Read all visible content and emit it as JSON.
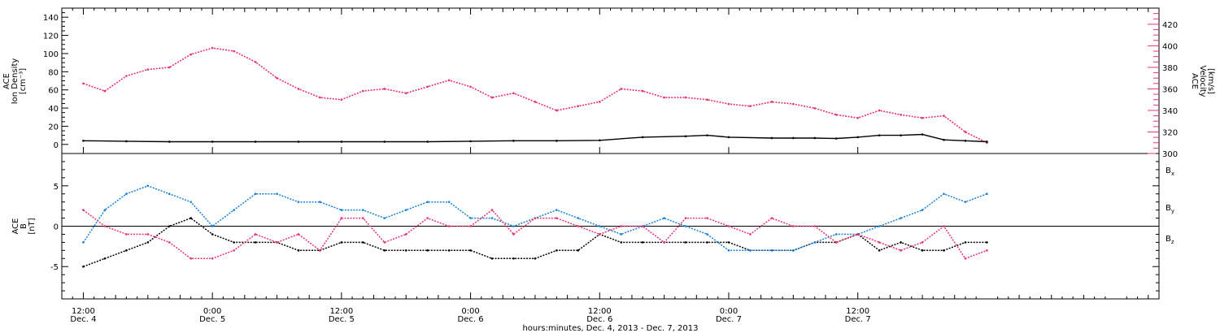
{
  "colors": {
    "black": "#000000",
    "pink": "#e8336b",
    "blue": "#1a7fd9"
  },
  "chart_data": [
    {
      "type": "scatter",
      "panel": "top",
      "ylabel_left_lines": [
        "ACE",
        "Ion Density",
        "[cm⁻³]"
      ],
      "ylabel_right_lines": [
        "ACE",
        "Velocity",
        "[km/s]"
      ],
      "ylim_left": [
        -10,
        150
      ],
      "ylim_right": [
        300,
        435
      ],
      "left_ticks": [
        "0",
        "20",
        "40",
        "60",
        "80",
        "100",
        "120",
        "140"
      ],
      "right_ticks": [
        "300",
        "320",
        "340",
        "360",
        "380",
        "400",
        "420"
      ],
      "series": [
        {
          "axis": "right",
          "color": "pink",
          "x": [
            0,
            2,
            4,
            6,
            8,
            10,
            12,
            14,
            16,
            18,
            20,
            22,
            24,
            26,
            28,
            30,
            32,
            34,
            36,
            38,
            40,
            42,
            44,
            46,
            48,
            50,
            52,
            54,
            56,
            58,
            60,
            62,
            64,
            66,
            68,
            70,
            72,
            74,
            76,
            78,
            80,
            82,
            84
          ],
          "y": [
            365,
            358,
            372,
            378,
            380,
            392,
            398,
            395,
            385,
            370,
            360,
            352,
            350,
            358,
            360,
            356,
            362,
            368,
            362,
            352,
            356,
            348,
            340,
            344,
            348,
            360,
            358,
            352,
            352,
            350,
            346,
            344,
            348,
            346,
            342,
            336,
            333,
            340,
            336,
            333,
            335,
            320,
            310
          ]
        },
        {
          "axis": "left",
          "color": "black",
          "x": [
            0,
            4,
            8,
            12,
            16,
            20,
            24,
            28,
            32,
            36,
            40,
            44,
            48,
            52,
            56,
            58,
            60,
            64,
            66,
            68,
            70,
            72,
            74,
            76,
            78,
            80,
            82,
            84
          ],
          "y": [
            4,
            3.5,
            3,
            3,
            3,
            3,
            3,
            3,
            3,
            3.5,
            4,
            4,
            4.5,
            8,
            9,
            10,
            8,
            7,
            7,
            7,
            6.5,
            8,
            10,
            10,
            11,
            5,
            4,
            3
          ]
        }
      ]
    },
    {
      "type": "scatter",
      "panel": "bottom",
      "ylabel_lines": [
        "ACE",
        "B",
        "[nT]"
      ],
      "ylim": [
        -9,
        9
      ],
      "ticks": [
        "-5",
        "0",
        "5"
      ],
      "legend": [
        "Bx",
        "By",
        "Bz"
      ],
      "series": [
        {
          "name": "Bx",
          "color": "black",
          "x": [
            0,
            2,
            4,
            6,
            8,
            10,
            12,
            14,
            16,
            18,
            20,
            22,
            24,
            26,
            28,
            30,
            32,
            34,
            36,
            38,
            40,
            42,
            44,
            46,
            48,
            50,
            52,
            54,
            56,
            58,
            60,
            62,
            64,
            66,
            68,
            70,
            72,
            74,
            76,
            78,
            80,
            82,
            84
          ],
          "y": [
            -5,
            -4,
            -3,
            -2,
            0,
            1,
            -1,
            -2,
            -2,
            -2,
            -3,
            -3,
            -2,
            -2,
            -3,
            -3,
            -3,
            -3,
            -3,
            -4,
            -4,
            -4,
            -3,
            -3,
            -1,
            -2,
            -2,
            -2,
            -2,
            -2,
            -2,
            -3,
            -3,
            -3,
            -2,
            -2,
            -1,
            -3,
            -2,
            -3,
            -3,
            -2,
            -2
          ]
        },
        {
          "name": "By",
          "color": "blue",
          "x": [
            0,
            2,
            4,
            6,
            8,
            10,
            12,
            14,
            16,
            18,
            20,
            22,
            24,
            26,
            28,
            30,
            32,
            34,
            36,
            38,
            40,
            42,
            44,
            46,
            48,
            50,
            52,
            54,
            56,
            58,
            60,
            62,
            64,
            66,
            68,
            70,
            72,
            74,
            76,
            78,
            80,
            82,
            84
          ],
          "y": [
            -2,
            2,
            4,
            5,
            4,
            3,
            0,
            2,
            4,
            4,
            3,
            3,
            2,
            2,
            1,
            2,
            3,
            3,
            1,
            1,
            0,
            1,
            2,
            1,
            0,
            -1,
            0,
            1,
            0,
            -1,
            -3,
            -3,
            -3,
            -3,
            -2,
            -1,
            -1,
            0,
            1,
            2,
            4,
            3,
            4
          ]
        },
        {
          "name": "Bz",
          "color": "pink",
          "x": [
            0,
            2,
            4,
            6,
            8,
            10,
            12,
            14,
            16,
            18,
            20,
            22,
            24,
            26,
            28,
            30,
            32,
            34,
            36,
            38,
            40,
            42,
            44,
            46,
            48,
            50,
            52,
            54,
            56,
            58,
            60,
            62,
            64,
            66,
            68,
            70,
            72,
            74,
            76,
            78,
            80,
            82,
            84
          ],
          "y": [
            2,
            0,
            -1,
            -1,
            -2,
            -4,
            -4,
            -3,
            -1,
            -2,
            -1,
            -3,
            1,
            1,
            -2,
            -1,
            1,
            0,
            0,
            2,
            -1,
            1,
            1,
            0,
            -1,
            0,
            0,
            -2,
            1,
            1,
            0,
            -1,
            1,
            0,
            0,
            -2,
            -1,
            -2,
            -3,
            -2,
            0,
            -4,
            -3
          ]
        }
      ]
    }
  ],
  "time_axis": {
    "xlim": [
      -2,
      100
    ],
    "xlabel": "hours:minutes, Dec.  4, 2013 - Dec.  7, 2013",
    "ticks": [
      {
        "hour": 0,
        "time": "12:00",
        "day": "Dec. 4"
      },
      {
        "hour": 12,
        "time": "0:00",
        "day": "Dec. 5"
      },
      {
        "hour": 24,
        "time": "12:00",
        "day": "Dec. 5"
      },
      {
        "hour": 36,
        "time": "0:00",
        "day": "Dec. 6"
      },
      {
        "hour": 48,
        "time": "12:00",
        "day": "Dec. 6"
      },
      {
        "hour": 60,
        "time": "0:00",
        "day": "Dec. 7"
      },
      {
        "hour": 72,
        "time": "12:00",
        "day": "Dec. 7"
      }
    ]
  }
}
